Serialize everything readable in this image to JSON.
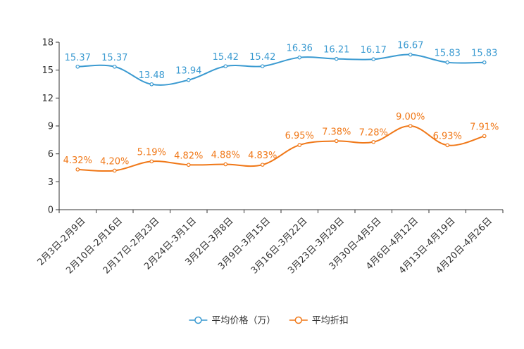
{
  "chart_data": {
    "type": "line",
    "title": "",
    "xlabel": "",
    "ylabel": "",
    "ylim": [
      0,
      18
    ],
    "yticks": [
      0,
      3,
      6,
      9,
      12,
      15,
      18
    ],
    "grid": false,
    "legend_position": "bottom-center",
    "categories": [
      "2月3日-2月9日",
      "2月10日-2月16日",
      "2月17日-2月23日",
      "2月24日-3月1日",
      "3月2日-3月8日",
      "3月9日-3月15日",
      "3月16日-3月22日",
      "3月23日-3月29日",
      "3月30日-4月5日",
      "4月6日-4月12日",
      "4月13日-4月19日",
      "4月20日-4月26日"
    ],
    "series": [
      {
        "name": "平均价格（万）",
        "color": "#3a9ad1",
        "values": [
          15.37,
          15.37,
          13.48,
          13.94,
          15.42,
          15.42,
          16.36,
          16.21,
          16.17,
          16.67,
          15.83,
          15.83
        ],
        "labels": [
          "15.37",
          "15.37",
          "13.48",
          "13.94",
          "15.42",
          "15.42",
          "16.36",
          "16.21",
          "16.17",
          "16.67",
          "15.83",
          "15.83"
        ]
      },
      {
        "name": "平均折扣",
        "color": "#f07818",
        "values": [
          4.32,
          4.2,
          5.19,
          4.82,
          4.88,
          4.83,
          6.95,
          7.38,
          7.28,
          9.0,
          6.93,
          7.91
        ],
        "labels": [
          "4.32%",
          "4.20%",
          "5.19%",
          "4.82%",
          "4.88%",
          "4.83%",
          "6.95%",
          "7.38%",
          "7.28%",
          "9.00%",
          "6.93%",
          "7.91%"
        ]
      }
    ]
  }
}
